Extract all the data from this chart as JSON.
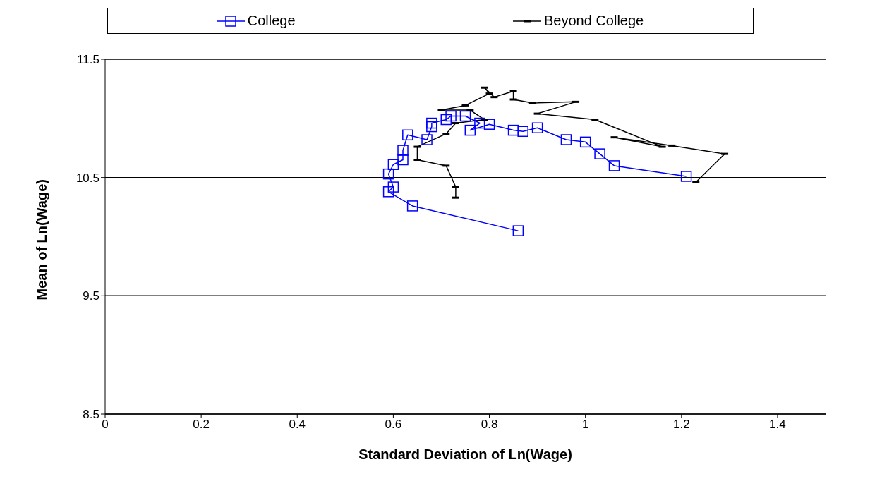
{
  "chart_data": {
    "type": "line",
    "xlabel": "Standard Deviation of Ln(Wage)",
    "ylabel": "Mean of Ln(Wage)",
    "xlim": [
      0,
      1.5
    ],
    "xticks": [
      0,
      0.2,
      0.4,
      0.6,
      0.8,
      1,
      1.2,
      1.4
    ],
    "ylim": [
      8.5,
      11.5
    ],
    "yticks": [
      8.5,
      9.5,
      10.5,
      11.5
    ],
    "grid": "y",
    "legend": "top",
    "line_style": "solid",
    "series": [
      {
        "name": "College",
        "color": "#0000ff",
        "marker": "square",
        "x": [
          0.86,
          0.64,
          0.59,
          0.6,
          0.59,
          0.6,
          0.62,
          0.62,
          0.63,
          0.67,
          0.68,
          0.68,
          0.71,
          0.72,
          0.75,
          0.78,
          0.76,
          0.8,
          0.85,
          0.87,
          0.9,
          0.96,
          1.0,
          1.03,
          1.06,
          1.21
        ],
        "values": [
          10.05,
          10.26,
          10.38,
          10.42,
          10.53,
          10.61,
          10.65,
          10.73,
          10.86,
          10.82,
          10.93,
          10.96,
          10.99,
          11.02,
          11.02,
          10.96,
          10.9,
          10.95,
          10.9,
          10.89,
          10.92,
          10.82,
          10.8,
          10.7,
          10.6,
          10.51
        ]
      },
      {
        "name": "Beyond College",
        "color": "#000000",
        "marker": "square",
        "x": [
          0.73,
          0.73,
          0.71,
          0.65,
          0.65,
          0.71,
          0.73,
          0.79,
          0.76,
          0.7,
          0.75,
          0.8,
          0.79,
          0.81,
          0.85,
          0.85,
          0.89,
          0.98,
          0.9,
          1.02,
          1.16,
          1.06,
          1.18,
          1.29,
          1.23
        ],
        "values": [
          10.33,
          10.42,
          10.6,
          10.65,
          10.76,
          10.87,
          10.96,
          10.99,
          11.07,
          11.07,
          11.11,
          11.21,
          11.26,
          11.18,
          11.23,
          11.16,
          11.13,
          11.14,
          11.04,
          10.99,
          10.76,
          10.84,
          10.77,
          10.7,
          10.46
        ]
      }
    ]
  }
}
